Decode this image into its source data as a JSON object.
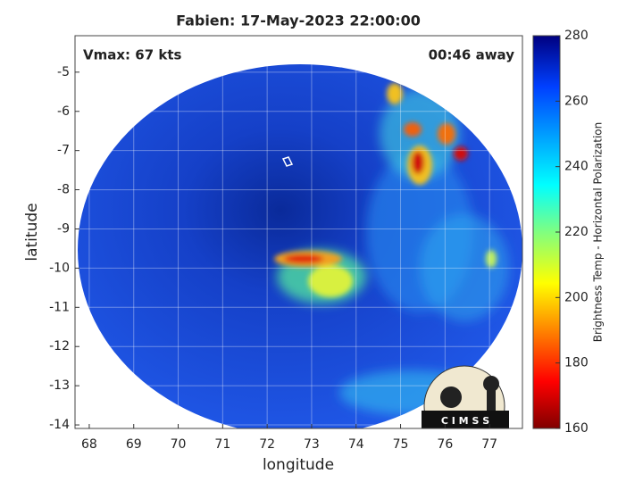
{
  "chart_data": {
    "type": "image",
    "title": "Fabien: 17-May-2023 22:00:00",
    "annotations": [
      "Vmax: 67 kts",
      "00:46 away"
    ],
    "xlabel": "longitude",
    "ylabel": "latitude",
    "xlim": [
      67.68,
      77.74
    ],
    "ylim": [
      -14.09,
      -4.07
    ],
    "xticks": [
      68,
      69,
      70,
      71,
      72,
      73,
      74,
      75,
      76,
      77
    ],
    "yticks": [
      -5,
      -6,
      -7,
      -8,
      -9,
      -10,
      -11,
      -12,
      -13,
      -14
    ],
    "grid": true,
    "colorbar": {
      "label": "Brightness Temp - Horizontal Polarization",
      "lim": [
        160,
        280
      ],
      "ticks": [
        160,
        180,
        200,
        220,
        240,
        260,
        280
      ]
    },
    "logo": "C I M S S"
  }
}
